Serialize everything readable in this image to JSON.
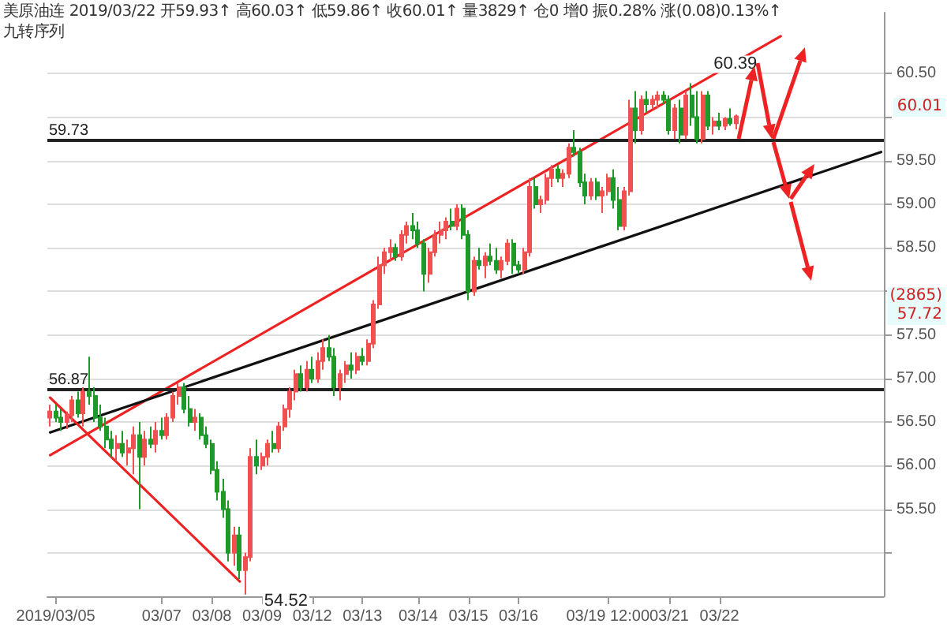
{
  "chart_data": {
    "type": "candlestick",
    "title": "美原油连",
    "subtitle": "九转序列",
    "annotations": [
      "2019/03/22",
      "开59.93↑",
      "高60.03↑",
      "低59.86↑",
      "收60.01↑",
      "量3829↑",
      "仓0",
      "增0",
      "振0.28%",
      "涨(0.08)0.13%↑",
      "60.01",
      "(2865)\n57.72"
    ],
    "categories": [
      null,
      "2019/03/05",
      null,
      null,
      null,
      null,
      null,
      null,
      null,
      null,
      null,
      null,
      null,
      null,
      null,
      null,
      null,
      null,
      null,
      null,
      "03/07",
      null,
      null,
      null,
      null,
      null,
      null,
      null,
      null,
      "03/08",
      null,
      null,
      null,
      null,
      null,
      null,
      null,
      null,
      "03/09",
      null,
      null,
      null,
      null,
      null,
      null,
      null,
      null,
      "03/12",
      null,
      null,
      null,
      null,
      null,
      null,
      null,
      null,
      "03/13",
      null,
      null,
      null,
      null,
      null,
      null,
      null,
      null,
      null,
      "03/14",
      null,
      null,
      null,
      null,
      null,
      null,
      null,
      null,
      "03/15",
      null,
      null,
      null,
      null,
      null,
      null,
      null,
      null,
      "03/16",
      null,
      null,
      null,
      null,
      null,
      null,
      null,
      null,
      null,
      null,
      null,
      null,
      null,
      null,
      null,
      "03/19 12:00",
      null,
      null,
      null,
      null,
      null,
      null,
      null,
      null,
      null,
      null,
      "03/21",
      null,
      null,
      null,
      null,
      null,
      null,
      null,
      null,
      "03/22",
      null,
      null,
      null,
      null,
      null,
      null,
      null,
      null,
      null,
      null,
      null,
      null,
      null,
      null,
      null,
      null,
      null,
      null,
      null,
      null,
      null,
      null,
      null,
      null,
      null,
      null,
      null,
      null,
      null
    ],
    "ylim": [
      54.5,
      61.2
    ],
    "yticks": [
      {
        "value": 55,
        "label": null
      },
      {
        "value": 55.5,
        "label": "55.50"
      },
      {
        "value": 56,
        "label": "56.00"
      },
      {
        "value": 56.5,
        "label": "56.50"
      },
      {
        "value": 57,
        "label": "57.00"
      },
      {
        "value": 57.5,
        "label": "57.50"
      },
      {
        "value": 58,
        "label": null
      },
      {
        "value": 58.5,
        "label": "58.50"
      },
      {
        "value": 59,
        "label": "59.00"
      },
      {
        "value": 59.5,
        "label": "59.50"
      },
      {
        "value": 60,
        "label": null
      },
      {
        "value": 60.5,
        "label": "60.50"
      }
    ],
    "grid": "y",
    "ref_lines": [
      {
        "axis": "y",
        "value": 59.73,
        "label": "59.73",
        "color": "#222222"
      },
      {
        "axis": "y",
        "value": 56.87,
        "label": "56.87",
        "color": "#222222"
      }
    ],
    "series": [
      {
        "value_labels": [
          null,
          null,
          null,
          null,
          null,
          null,
          null,
          null,
          null,
          null,
          null,
          null,
          null,
          null,
          null,
          null,
          null,
          null,
          null,
          null,
          null,
          null,
          null,
          null,
          null,
          null,
          null,
          null,
          null,
          null,
          null,
          null,
          null,
          null,
          null,
          "54.52",
          null,
          null,
          null,
          null,
          null,
          null,
          null,
          null,
          null,
          null,
          null,
          null,
          null,
          null,
          null,
          null,
          null,
          null,
          null,
          null,
          null,
          null,
          null,
          null,
          null,
          null,
          null,
          null,
          null,
          null,
          null,
          null,
          null,
          null,
          null,
          null,
          null,
          null,
          null,
          null,
          null,
          null,
          null,
          null,
          null,
          null,
          null,
          null,
          null,
          null,
          null,
          null,
          null,
          null,
          null,
          null,
          null,
          null,
          null,
          null,
          null,
          null,
          null,
          null,
          null,
          null,
          null,
          null,
          null,
          null,
          null,
          null,
          null,
          null,
          null,
          null,
          null,
          null,
          null,
          "60.39",
          null,
          null,
          null,
          null,
          null,
          null,
          null,
          null,
          null,
          null,
          null,
          null,
          null,
          null,
          null,
          null,
          null,
          null,
          null,
          null,
          null,
          null,
          null,
          null,
          null,
          null,
          null,
          null,
          null,
          null,
          null,
          null,
          null,
          null
        ],
        "ohlc": [
          [
            56.55,
            56.7,
            56.45,
            56.62
          ],
          [
            56.62,
            56.7,
            56.5,
            56.55
          ],
          [
            56.55,
            56.65,
            56.4,
            56.5
          ],
          [
            56.5,
            56.62,
            56.42,
            56.58
          ],
          [
            56.58,
            56.8,
            56.5,
            56.75
          ],
          [
            56.75,
            56.85,
            56.55,
            56.6
          ],
          [
            56.6,
            56.9,
            56.45,
            56.85
          ],
          [
            56.85,
            57.25,
            56.7,
            56.8
          ],
          [
            56.8,
            56.9,
            56.5,
            56.55
          ],
          [
            56.55,
            56.7,
            56.4,
            56.45
          ],
          [
            56.45,
            56.55,
            56.2,
            56.3
          ],
          [
            56.3,
            56.4,
            56.1,
            56.2
          ],
          [
            56.2,
            56.35,
            56.05,
            56.25
          ],
          [
            56.25,
            56.4,
            56.1,
            56.15
          ],
          [
            56.15,
            56.3,
            56.0,
            56.2
          ],
          [
            56.2,
            56.45,
            55.9,
            56.35
          ],
          [
            56.35,
            56.5,
            55.5,
            56.1
          ],
          [
            56.1,
            56.4,
            56.0,
            56.3
          ],
          [
            56.3,
            56.45,
            56.2,
            56.25
          ],
          [
            56.25,
            56.5,
            56.15,
            56.4
          ],
          [
            56.4,
            56.55,
            56.3,
            56.35
          ],
          [
            56.35,
            56.6,
            56.3,
            56.55
          ],
          [
            56.55,
            56.85,
            56.5,
            56.8
          ],
          [
            56.8,
            56.95,
            56.7,
            56.9
          ],
          [
            56.9,
            56.95,
            56.6,
            56.65
          ],
          [
            56.65,
            56.8,
            56.45,
            56.5
          ],
          [
            56.5,
            56.65,
            56.4,
            56.55
          ],
          [
            56.55,
            56.6,
            56.3,
            56.35
          ],
          [
            56.35,
            56.45,
            56.2,
            56.25
          ],
          [
            56.25,
            56.3,
            55.9,
            55.95
          ],
          [
            55.95,
            56.05,
            55.6,
            55.7
          ],
          [
            55.7,
            55.85,
            55.4,
            55.5
          ],
          [
            55.5,
            55.6,
            54.9,
            55.0
          ],
          [
            55.0,
            55.3,
            54.85,
            55.2
          ],
          [
            55.2,
            55.3,
            54.7,
            54.8
          ],
          [
            54.8,
            55.0,
            54.52,
            54.95
          ],
          [
            54.95,
            56.2,
            54.9,
            56.1
          ],
          [
            56.1,
            56.3,
            55.9,
            56.0
          ],
          [
            56.0,
            56.15,
            55.95,
            56.1
          ],
          [
            56.1,
            56.3,
            56.0,
            56.25
          ],
          [
            56.25,
            56.4,
            56.15,
            56.2
          ],
          [
            56.2,
            56.5,
            56.15,
            56.45
          ],
          [
            56.45,
            56.7,
            56.4,
            56.65
          ],
          [
            56.65,
            56.9,
            56.55,
            56.85
          ],
          [
            56.85,
            57.1,
            56.75,
            57.05
          ],
          [
            57.05,
            57.15,
            56.85,
            56.9
          ],
          [
            56.9,
            57.2,
            56.85,
            57.1
          ],
          [
            57.1,
            57.25,
            56.95,
            57.0
          ],
          [
            57.0,
            57.3,
            56.95,
            57.2
          ],
          [
            57.2,
            57.45,
            57.1,
            57.35
          ],
          [
            57.35,
            57.5,
            57.2,
            57.25
          ],
          [
            57.25,
            57.35,
            56.8,
            56.9
          ],
          [
            56.9,
            57.1,
            56.75,
            57.05
          ],
          [
            57.05,
            57.2,
            56.95,
            57.15
          ],
          [
            57.15,
            57.3,
            57.0,
            57.1
          ],
          [
            57.1,
            57.3,
            57.05,
            57.25
          ],
          [
            57.25,
            57.35,
            57.15,
            57.2
          ],
          [
            57.2,
            57.45,
            57.15,
            57.4
          ],
          [
            57.4,
            57.9,
            57.35,
            57.85
          ],
          [
            57.85,
            58.4,
            57.8,
            58.3
          ],
          [
            58.3,
            58.5,
            58.2,
            58.45
          ],
          [
            58.45,
            58.6,
            58.35,
            58.5
          ],
          [
            58.5,
            58.55,
            58.35,
            58.4
          ],
          [
            58.4,
            58.7,
            58.35,
            58.65
          ],
          [
            58.65,
            58.8,
            58.55,
            58.75
          ],
          [
            58.75,
            58.9,
            58.6,
            58.7
          ],
          [
            58.7,
            58.8,
            58.5,
            58.55
          ],
          [
            58.55,
            58.6,
            58.0,
            58.2
          ],
          [
            58.2,
            58.5,
            58.1,
            58.45
          ],
          [
            58.45,
            58.7,
            58.4,
            58.65
          ],
          [
            58.65,
            58.8,
            58.55,
            58.7
          ],
          [
            58.7,
            58.85,
            58.6,
            58.8
          ],
          [
            58.8,
            58.95,
            58.7,
            58.75
          ],
          [
            58.75,
            59.0,
            58.7,
            58.95
          ],
          [
            58.95,
            59.0,
            58.6,
            58.65
          ],
          [
            58.65,
            58.7,
            57.9,
            58.0
          ],
          [
            58.0,
            58.4,
            57.95,
            58.35
          ],
          [
            58.35,
            58.5,
            58.25,
            58.3
          ],
          [
            58.3,
            58.45,
            58.15,
            58.4
          ],
          [
            58.4,
            58.55,
            58.3,
            58.35
          ],
          [
            58.35,
            58.5,
            58.2,
            58.25
          ],
          [
            58.25,
            58.4,
            58.15,
            58.35
          ],
          [
            58.35,
            58.6,
            58.3,
            58.55
          ],
          [
            58.55,
            58.6,
            58.2,
            58.3
          ],
          [
            58.3,
            58.35,
            58.2,
            58.25
          ],
          [
            58.25,
            58.5,
            58.2,
            58.45
          ],
          [
            58.45,
            59.3,
            58.4,
            59.2
          ],
          [
            59.2,
            59.3,
            58.95,
            59.0
          ],
          [
            59.0,
            59.1,
            58.9,
            59.05
          ],
          [
            59.05,
            59.35,
            59.0,
            59.3
          ],
          [
            59.3,
            59.45,
            59.2,
            59.4
          ],
          [
            59.4,
            59.45,
            59.25,
            59.3
          ],
          [
            59.3,
            59.4,
            59.2,
            59.35
          ],
          [
            59.35,
            59.7,
            59.3,
            59.65
          ],
          [
            59.65,
            59.85,
            59.55,
            59.6
          ],
          [
            59.6,
            59.65,
            59.2,
            59.25
          ],
          [
            59.25,
            59.35,
            59.0,
            59.1
          ],
          [
            59.1,
            59.3,
            59.05,
            59.25
          ],
          [
            59.25,
            59.3,
            59.05,
            59.1
          ],
          [
            59.1,
            59.2,
            58.9,
            59.15
          ],
          [
            59.15,
            59.35,
            59.1,
            59.3
          ],
          [
            59.3,
            59.4,
            58.95,
            59.05
          ],
          [
            59.05,
            59.2,
            58.7,
            58.75
          ],
          [
            58.75,
            59.2,
            58.7,
            59.15
          ],
          [
            59.15,
            60.2,
            59.1,
            60.1
          ],
          [
            60.1,
            60.3,
            59.7,
            59.85
          ],
          [
            59.85,
            60.25,
            59.8,
            60.2
          ],
          [
            60.2,
            60.3,
            60.05,
            60.15
          ],
          [
            60.15,
            60.25,
            60.1,
            60.2
          ],
          [
            60.2,
            60.3,
            60.1,
            60.25
          ],
          [
            60.25,
            60.3,
            60.15,
            60.2
          ],
          [
            60.2,
            60.25,
            59.8,
            59.85
          ],
          [
            59.85,
            60.15,
            59.75,
            60.1
          ],
          [
            60.1,
            60.2,
            59.7,
            59.8
          ],
          [
            59.8,
            60.3,
            59.75,
            60.25
          ],
          [
            60.25,
            60.39,
            59.9,
            60.0
          ],
          [
            60.0,
            60.3,
            59.7,
            59.75
          ],
          [
            59.75,
            60.3,
            59.7,
            60.25
          ],
          [
            60.25,
            60.3,
            59.85,
            59.9
          ],
          [
            59.9,
            60.0,
            59.8,
            59.95
          ],
          [
            59.95,
            60.05,
            59.85,
            59.9
          ],
          [
            59.9,
            60.0,
            59.85,
            59.98
          ],
          [
            59.98,
            60.1,
            59.9,
            59.93
          ],
          [
            59.93,
            60.03,
            59.86,
            60.01
          ],
          null,
          null,
          null,
          null,
          null,
          null,
          null,
          null,
          null,
          null,
          null,
          null,
          null,
          null,
          null,
          null,
          null,
          null,
          null,
          null,
          null,
          null,
          null,
          null,
          null,
          null
        ]
      },
      {
        "type": "line",
        "color": "#ee2222",
        "values": [
          56.12,
          null,
          null,
          null,
          null,
          null,
          null,
          null,
          null,
          null,
          null,
          null,
          null,
          null,
          null,
          null,
          null,
          null,
          null,
          null,
          null,
          null,
          null,
          null,
          null,
          null,
          null,
          null,
          null,
          null,
          null,
          null,
          null,
          null,
          null,
          null,
          null,
          null,
          null,
          null,
          null,
          null,
          null,
          null,
          null,
          null,
          null,
          null,
          null,
          null,
          null,
          null,
          null,
          null,
          null,
          null,
          null,
          null,
          null,
          null,
          null,
          null,
          null,
          null,
          null,
          null,
          null,
          null,
          null,
          null,
          null,
          null,
          null,
          null,
          null,
          null,
          null,
          null,
          null,
          null,
          null,
          null,
          null,
          null,
          null,
          null,
          null,
          null,
          null,
          null,
          null,
          null,
          null,
          null,
          null,
          null,
          null,
          null,
          null,
          null,
          null,
          null,
          null,
          null,
          null,
          null,
          null,
          null,
          null,
          null,
          null,
          null,
          null,
          null,
          null,
          null,
          null,
          null,
          null,
          null,
          null,
          null,
          null,
          null,
          null,
          null,
          null,
          null,
          null,
          null,
          null,
          60.93,
          null,
          null,
          null,
          null,
          null,
          null,
          null,
          null,
          null,
          null,
          null,
          null,
          null,
          null,
          null,
          null,
          null,
          null
        ]
      },
      {
        "type": "line",
        "color": "#111111",
        "values": [
          56.38,
          null,
          null,
          null,
          null,
          null,
          null,
          null,
          null,
          null,
          null,
          null,
          null,
          null,
          null,
          null,
          null,
          null,
          null,
          null,
          null,
          null,
          null,
          null,
          null,
          null,
          null,
          null,
          null,
          null,
          null,
          null,
          null,
          null,
          null,
          null,
          null,
          null,
          null,
          null,
          null,
          null,
          null,
          null,
          null,
          null,
          null,
          null,
          null,
          null,
          null,
          null,
          null,
          null,
          null,
          null,
          null,
          null,
          null,
          null,
          null,
          null,
          null,
          null,
          null,
          null,
          null,
          null,
          null,
          null,
          null,
          null,
          null,
          null,
          null,
          null,
          null,
          null,
          null,
          null,
          null,
          null,
          null,
          null,
          null,
          null,
          null,
          null,
          null,
          null,
          null,
          null,
          null,
          null,
          null,
          null,
          null,
          null,
          null,
          null,
          null,
          null,
          null,
          null,
          null,
          null,
          null,
          null,
          null,
          null,
          null,
          null,
          null,
          null,
          null,
          null,
          null,
          null,
          null,
          null,
          null,
          null,
          null,
          null,
          null,
          null,
          null,
          null,
          null,
          null,
          null,
          null,
          null,
          null,
          null,
          null,
          null,
          null,
          null,
          null,
          null,
          null,
          null,
          null,
          null,
          null,
          null,
          null,
          null,
          59.6
        ]
      },
      {
        "type": "line",
        "color": "#ee2222",
        "values": [
          56.78,
          null,
          null,
          null,
          null,
          null,
          null,
          null,
          null,
          null,
          null,
          null,
          null,
          null,
          null,
          null,
          null,
          null,
          null,
          null,
          null,
          null,
          null,
          null,
          null,
          null,
          null,
          null,
          null,
          null,
          null,
          null,
          null,
          null,
          54.67,
          null,
          null,
          null,
          null,
          null,
          null,
          null,
          null,
          null,
          null,
          null,
          null,
          null,
          null,
          null,
          null,
          null,
          null,
          null,
          null,
          null,
          null,
          null,
          null,
          null,
          null,
          null,
          null,
          null,
          null,
          null,
          null,
          null,
          null,
          null,
          null,
          null,
          null,
          null,
          null,
          null,
          null,
          null,
          null,
          null,
          null,
          null,
          null,
          null,
          null,
          null,
          null,
          null,
          null,
          null,
          null,
          null,
          null,
          null,
          null,
          null,
          null,
          null,
          null,
          null,
          null,
          null,
          null,
          null,
          null,
          null,
          null,
          null,
          null,
          null,
          null,
          null,
          null,
          null,
          null,
          null,
          null,
          null,
          null,
          null,
          null,
          null,
          null,
          null,
          null,
          null,
          null,
          null,
          null,
          null,
          null,
          null,
          null,
          null,
          null,
          null,
          null,
          null,
          null,
          null,
          null,
          null,
          null,
          null,
          null,
          null,
          null,
          null,
          null,
          null
        ]
      }
    ],
    "marker": "none",
    "line_style": "solid"
  }
}
